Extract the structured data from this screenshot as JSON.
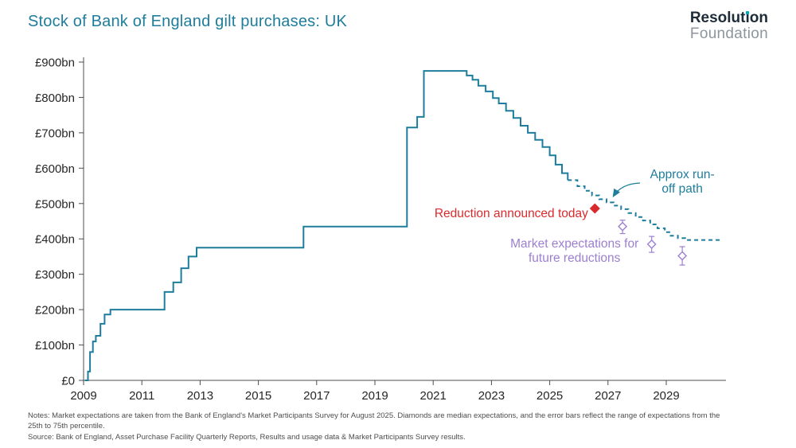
{
  "colors": {
    "teal": "#1e7d9c",
    "red": "#d92a2d",
    "purple": "#9c7fd2",
    "axis_text": "#262626",
    "axis_line": "#4d4d4d",
    "logo_navy": "#1d2c38",
    "logo_gray": "#8e959c",
    "logo_dot": "#00a8bb",
    "notes_gray": "#4d4d4d"
  },
  "header": {
    "title": "Stock of Bank of England gilt purchases: UK",
    "logo": {
      "pre": "Resolut",
      "i_base": "ı",
      "post": "on",
      "line2": "Foundation"
    }
  },
  "chart_data": {
    "type": "line",
    "title": "Stock of Bank of England gilt purchases: UK",
    "ylabel": "£bn",
    "grid": false,
    "x_axis": {
      "range": [
        2008.75,
        2031.0
      ],
      "ticks": [
        2009,
        2011,
        2013,
        2015,
        2017,
        2019,
        2021,
        2023,
        2025,
        2027,
        2029
      ]
    },
    "y_axis": {
      "range": [
        0,
        900
      ],
      "ticks": [
        {
          "value": 0,
          "label": "£0"
        },
        {
          "value": 100,
          "label": "£100bn"
        },
        {
          "value": 200,
          "label": "£200bn"
        },
        {
          "value": 300,
          "label": "£300bn"
        },
        {
          "value": 400,
          "label": "£400bn"
        },
        {
          "value": 500,
          "label": "£500bn"
        },
        {
          "value": 600,
          "label": "£600bn"
        },
        {
          "value": 700,
          "label": "£700bn"
        },
        {
          "value": 800,
          "label": "£800bn"
        },
        {
          "value": 900,
          "label": "£900bn"
        }
      ]
    },
    "series": [
      {
        "id": "gilt-stock-outturn",
        "name": "Stock of Bank of England gilt purchases (outturn)",
        "style": "solid",
        "color_key": "teal",
        "step": true,
        "points": [
          [
            2009.05,
            0
          ],
          [
            2009.15,
            25
          ],
          [
            2009.22,
            80
          ],
          [
            2009.32,
            110
          ],
          [
            2009.42,
            126
          ],
          [
            2009.58,
            160
          ],
          [
            2009.72,
            186
          ],
          [
            2009.92,
            200
          ],
          [
            2011.78,
            250
          ],
          [
            2012.08,
            277
          ],
          [
            2012.35,
            317
          ],
          [
            2012.6,
            350
          ],
          [
            2012.88,
            375
          ],
          [
            2016.55,
            435
          ],
          [
            2020.1,
            715
          ],
          [
            2020.45,
            745
          ],
          [
            2020.68,
            875
          ],
          [
            2022.15,
            862
          ],
          [
            2022.35,
            850
          ],
          [
            2022.55,
            833
          ],
          [
            2022.8,
            817
          ],
          [
            2023.05,
            798
          ],
          [
            2023.25,
            783
          ],
          [
            2023.5,
            762
          ],
          [
            2023.75,
            742
          ],
          [
            2024.0,
            720
          ],
          [
            2024.25,
            700
          ],
          [
            2024.5,
            680
          ],
          [
            2024.75,
            660
          ],
          [
            2025.0,
            636
          ],
          [
            2025.2,
            610
          ],
          [
            2025.42,
            586
          ],
          [
            2025.62,
            566
          ]
        ]
      },
      {
        "id": "approx-run-off-path",
        "name": "Approx run-off path (projection)",
        "style": "dashed",
        "color_key": "teal",
        "step": true,
        "points": [
          [
            2025.62,
            566
          ],
          [
            2025.95,
            549
          ],
          [
            2026.2,
            536
          ],
          [
            2026.45,
            523
          ],
          [
            2026.7,
            512
          ],
          [
            2026.95,
            503
          ],
          [
            2027.2,
            494
          ],
          [
            2027.45,
            484
          ],
          [
            2027.7,
            473
          ],
          [
            2027.95,
            462
          ],
          [
            2028.2,
            452
          ],
          [
            2028.45,
            441
          ],
          [
            2028.7,
            430
          ],
          [
            2028.95,
            419
          ],
          [
            2029.15,
            409
          ],
          [
            2029.4,
            402
          ],
          [
            2029.65,
            397
          ],
          [
            2030.85,
            397
          ]
        ]
      }
    ],
    "point_markers": [
      {
        "id": "reduction-announced-diamond",
        "shape": "diamond",
        "filled": true,
        "color_key": "red",
        "x": 2026.55,
        "value": 486
      },
      {
        "id": "market-expectation-diamond-1",
        "shape": "diamond",
        "filled": false,
        "color_key": "purple",
        "x": 2027.5,
        "value": 435,
        "range": [
          415,
          453
        ]
      },
      {
        "id": "market-expectation-diamond-2",
        "shape": "diamond",
        "filled": false,
        "color_key": "purple",
        "x": 2028.5,
        "value": 385,
        "range": [
          362,
          407
        ]
      },
      {
        "id": "market-expectation-diamond-3",
        "shape": "diamond",
        "filled": false,
        "color_key": "purple",
        "x": 2029.55,
        "value": 352,
        "range": [
          326,
          378
        ]
      }
    ],
    "annotations": [
      {
        "id": "approx-run-off",
        "lines": [
          "Approx run-",
          "off path"
        ],
        "color_key": "teal",
        "x": 2029.55,
        "value": 572,
        "anchor": "middle",
        "arrow": {
          "from": [
            2028.1,
            558
          ],
          "ctrl": [
            2027.45,
            556
          ],
          "to": [
            2027.18,
            520
          ]
        }
      },
      {
        "id": "reduction-announced",
        "lines": [
          "Reduction announced today"
        ],
        "color_key": "red",
        "x": 2026.32,
        "value": 461,
        "anchor": "end"
      },
      {
        "id": "market-expectations",
        "lines": [
          "Market expectations for",
          "future reductions"
        ],
        "color_key": "purple",
        "x": 2025.85,
        "value": 376,
        "anchor": "middle"
      }
    ]
  },
  "notes": {
    "notes": "Notes: Market expectations are taken from the Bank of England's Market Participants Survey for August 2025. Diamonds are median expectations, and the error bars reflect the range of expectations from the 25th to 75th percentile.",
    "source": "Source: Bank of England, Asset Purchase Facility Quarterly Reports, Results and usage data & Market Participants Survey results."
  }
}
